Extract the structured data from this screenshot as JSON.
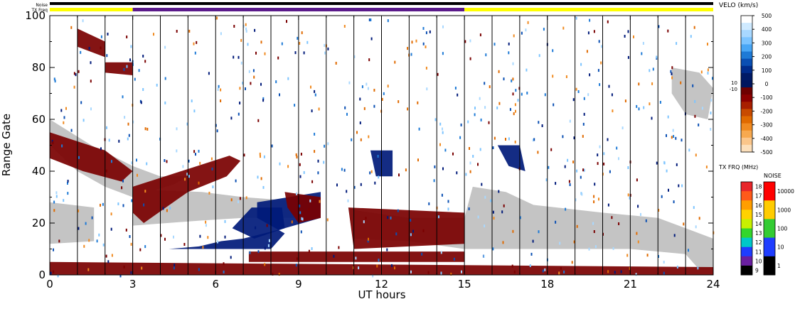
{
  "chart_data": {
    "type": "heatmap",
    "title": "",
    "xlabel": "UT hours",
    "ylabel": "Range Gate",
    "xlim": [
      0,
      24
    ],
    "ylim": [
      0,
      100
    ],
    "x_ticks": [
      "0",
      "3",
      "6",
      "9",
      "12",
      "15",
      "18",
      "21",
      "24"
    ],
    "y_ticks": [
      "0",
      "20",
      "40",
      "60",
      "80",
      "100"
    ],
    "scan_boundaries_ut": [
      1,
      2,
      3,
      4,
      5,
      6,
      7,
      8,
      9,
      10,
      11,
      12,
      13,
      14,
      15,
      16,
      17,
      18,
      19,
      20,
      21,
      22,
      23,
      24
    ],
    "status_bars": {
      "noise_label": "Noise",
      "txfreq_label": "TX Freq",
      "txfreq_segments": [
        {
          "start": 0,
          "end": 3,
          "color": "#ffff00"
        },
        {
          "start": 3,
          "end": 15,
          "color": "#5a1a8a"
        },
        {
          "start": 15,
          "end": 24,
          "color": "#ffff00"
        }
      ]
    },
    "velocity_colorbar": {
      "title": "VELO (km/s)",
      "ticks": [
        "500",
        "400",
        "300",
        "200",
        "100",
        "0",
        "-100",
        "-200",
        "-300",
        "-400",
        "-500"
      ],
      "ground_scatter_labels": [
        "10",
        "-10"
      ],
      "colors": [
        "#ffffff",
        "#cfeaff",
        "#a8d8ff",
        "#7cc4ff",
        "#48a6f5",
        "#1e7ad6",
        "#0a4fb3",
        "#002c8c",
        "#001a66",
        "#00155e",
        "#6e0000",
        "#8c0000",
        "#a81f00",
        "#c84a00",
        "#e06a00",
        "#f08a20",
        "#f7a94f",
        "#fbc68a",
        "#fde0bb"
      ]
    },
    "txfreq_colorbar": {
      "title": "TX FRQ (MHz)",
      "ticks": [
        "18",
        "17",
        "16",
        "15",
        "14",
        "13",
        "12",
        "11",
        "10",
        "9"
      ],
      "colors": [
        "#e8262b",
        "#ff5a1a",
        "#ff9e00",
        "#ffd200",
        "#c8f000",
        "#33d62b",
        "#00c8c8",
        "#1f3dff",
        "#6a1fa0",
        "#000000"
      ]
    },
    "noise_colorbar": {
      "title": "NOISE",
      "ticks": [
        "10000",
        "1000",
        "100",
        "10",
        "1"
      ],
      "colors": [
        "#ff0000",
        "#ffcc00",
        "#33cc33",
        "#1f3dff",
        "#000000"
      ]
    },
    "ground_scatter_color": "#c4c4c4",
    "features": [
      {
        "kind": "ground_scatter",
        "polygon": [
          [
            0,
            60
          ],
          [
            1.5,
            50
          ],
          [
            3,
            42
          ],
          [
            4,
            38
          ],
          [
            5,
            38
          ],
          [
            5.5,
            41
          ],
          [
            4.5,
            35
          ],
          [
            3,
            30
          ],
          [
            2,
            34
          ],
          [
            1,
            40
          ],
          [
            0,
            50
          ]
        ]
      },
      {
        "kind": "ground_scatter",
        "polygon": [
          [
            0,
            28
          ],
          [
            1.6,
            26
          ],
          [
            1.6,
            13
          ],
          [
            0,
            12
          ]
        ]
      },
      {
        "kind": "ground_scatter",
        "polygon": [
          [
            3,
            33
          ],
          [
            5.5,
            32
          ],
          [
            7,
            30
          ],
          [
            9.5,
            28
          ],
          [
            9.5,
            22
          ],
          [
            7,
            22
          ],
          [
            5.5,
            21
          ],
          [
            3,
            19
          ]
        ]
      },
      {
        "kind": "ground_scatter",
        "polygon": [
          [
            11,
            25
          ],
          [
            13,
            22
          ],
          [
            15,
            22
          ],
          [
            15.3,
            34
          ],
          [
            16.5,
            32
          ],
          [
            17.5,
            27
          ],
          [
            20,
            24
          ],
          [
            22,
            22
          ],
          [
            23,
            18
          ],
          [
            24,
            14
          ],
          [
            24,
            2
          ],
          [
            23.5,
            2
          ],
          [
            23,
            8
          ],
          [
            21,
            10
          ],
          [
            18,
            10
          ],
          [
            16,
            10
          ],
          [
            15,
            10
          ],
          [
            13,
            13
          ],
          [
            11,
            14
          ]
        ]
      },
      {
        "kind": "ground_scatter",
        "polygon": [
          [
            22.5,
            80
          ],
          [
            23.5,
            78
          ],
          [
            24,
            72
          ],
          [
            23.8,
            60
          ],
          [
            23,
            62
          ],
          [
            22.5,
            70
          ]
        ]
      },
      {
        "kind": "velocity_patch",
        "color": "#001a7a",
        "polygon": [
          [
            4.3,
            10
          ],
          [
            8,
            10
          ],
          [
            8.5,
            16
          ],
          [
            7.5,
            22
          ],
          [
            7.5,
            28
          ],
          [
            9.8,
            32
          ],
          [
            9.8,
            22
          ],
          [
            8.5,
            18
          ],
          [
            7,
            14
          ],
          [
            6.2,
            13
          ],
          [
            5.4,
            11
          ]
        ]
      },
      {
        "kind": "velocity_patch",
        "color": "#001a7a",
        "polygon": [
          [
            7.3,
            26
          ],
          [
            8.4,
            26
          ],
          [
            8.5,
            18
          ],
          [
            7.4,
            14
          ],
          [
            6.6,
            18
          ]
        ]
      },
      {
        "kind": "velocity_patch",
        "color": "#001a7a",
        "polygon": [
          [
            11.6,
            48
          ],
          [
            12.4,
            48
          ],
          [
            12.4,
            38
          ],
          [
            11.8,
            38
          ]
        ]
      },
      {
        "kind": "velocity_patch",
        "color": "#001a7a",
        "polygon": [
          [
            16.2,
            50
          ],
          [
            17.0,
            50
          ],
          [
            17.2,
            40
          ],
          [
            16.6,
            42
          ],
          [
            16.4,
            46
          ]
        ]
      },
      {
        "kind": "velocity_patch",
        "color": "#7a0000",
        "polygon": [
          [
            0,
            5
          ],
          [
            24,
            3
          ],
          [
            24,
            0
          ],
          [
            0,
            0
          ]
        ]
      },
      {
        "kind": "velocity_patch",
        "color": "#7a0000",
        "polygon": [
          [
            7.2,
            9
          ],
          [
            15,
            9
          ],
          [
            15,
            5
          ],
          [
            7.2,
            5
          ]
        ]
      },
      {
        "kind": "velocity_patch",
        "color": "#7a0000",
        "polygon": [
          [
            3,
            34
          ],
          [
            6.5,
            46
          ],
          [
            6.9,
            44
          ],
          [
            6.4,
            38
          ],
          [
            5,
            32
          ],
          [
            3.4,
            20
          ],
          [
            3,
            24
          ]
        ]
      },
      {
        "kind": "velocity_patch",
        "color": "#7a0000",
        "polygon": [
          [
            0,
            55
          ],
          [
            2,
            48
          ],
          [
            3,
            40
          ],
          [
            2.6,
            36
          ],
          [
            1.2,
            40
          ],
          [
            0,
            45
          ]
        ]
      },
      {
        "kind": "velocity_patch",
        "color": "#7a0000",
        "polygon": [
          [
            1.0,
            95
          ],
          [
            2.0,
            90
          ],
          [
            2.0,
            84
          ],
          [
            1.0,
            88
          ]
        ]
      },
      {
        "kind": "velocity_patch",
        "color": "#7a0000",
        "polygon": [
          [
            2.0,
            82
          ],
          [
            3.0,
            82
          ],
          [
            3.0,
            77
          ],
          [
            2.0,
            78
          ]
        ]
      },
      {
        "kind": "velocity_patch",
        "color": "#7a0000",
        "polygon": [
          [
            8.5,
            32
          ],
          [
            9.8,
            30
          ],
          [
            9.8,
            22
          ],
          [
            9.0,
            20
          ],
          [
            8.6,
            26
          ]
        ]
      },
      {
        "kind": "velocity_patch",
        "color": "#7a0000",
        "polygon": [
          [
            10.8,
            26
          ],
          [
            15,
            24
          ],
          [
            15,
            12
          ],
          [
            11,
            10
          ]
        ]
      }
    ]
  }
}
